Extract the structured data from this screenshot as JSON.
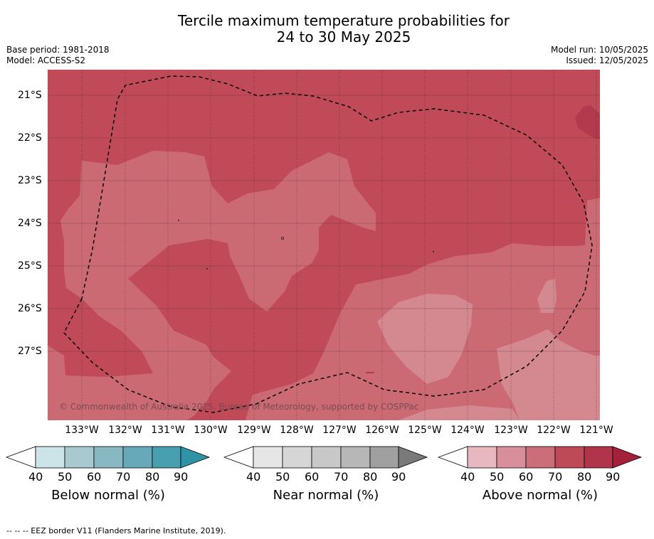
{
  "title_line1": "Tercile maximum temperature probabilities for",
  "title_line2": "24 to 30 May 2025",
  "base_period": "Base period: 1981-2018",
  "model": "Model: ACCESS-S2",
  "model_run": "Model run: 10/05/2025",
  "issued": "Issued: 12/05/2025",
  "copyright": "© Commonwealth of Australia 2025, Bureau of Meteorology, supported by COSPPac",
  "lat_labels": [
    "21°S",
    "22°S",
    "23°S",
    "24°S",
    "25°S",
    "26°S",
    "27°S"
  ],
  "lon_labels": [
    "133°W",
    "132°W",
    "131°W",
    "130°W",
    "129°W",
    "128°W",
    "127°W",
    "126°W",
    "125°W",
    "124°W",
    "123°W",
    "122°W",
    "121°W"
  ],
  "colorbars": [
    {
      "title": "Below normal (%)",
      "ticks": [
        "40",
        "50",
        "60",
        "70",
        "80",
        "90"
      ],
      "colors": [
        "#ffffff",
        "#cce3e8",
        "#a7c9cf",
        "#88b8c2",
        "#67a9b8",
        "#479fb0",
        "#2f93a6"
      ]
    },
    {
      "title": "Near normal (%)",
      "ticks": [
        "40",
        "50",
        "60",
        "70",
        "80",
        "90"
      ],
      "colors": [
        "#ffffff",
        "#e6e6e6",
        "#d6d6d6",
        "#c8c8c8",
        "#b7b7b7",
        "#a0a0a0",
        "#7a7a7a"
      ]
    },
    {
      "title": "Above normal (%)",
      "ticks": [
        "40",
        "50",
        "60",
        "70",
        "80",
        "90"
      ],
      "colors": [
        "#ffffff",
        "#e8b8c0",
        "#d88f9b",
        "#cb6e79",
        "#be4a58",
        "#b0354a",
        "#a3213a"
      ]
    }
  ],
  "footer": "--  --  -- EEZ border V11 (Flanders Marine Institute, 2019)."
}
